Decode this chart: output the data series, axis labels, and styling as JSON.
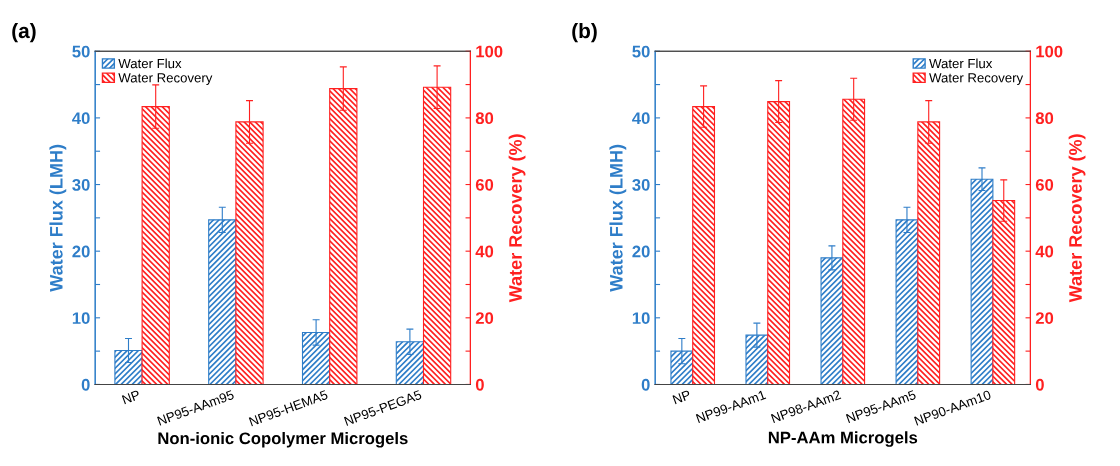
{
  "chart_data": [
    {
      "type": "bar",
      "annotations": [
        "(a)"
      ],
      "xlabel": "Non-ionic Copolymer Microgels",
      "ylabel": "Water Flux (LMH)",
      "y2label": "Water Recovery (%)",
      "categories": [
        "NP",
        "NP95-AAm95",
        "NP95-HEMA5",
        "NP95-PEGA5"
      ],
      "series": [
        {
          "name": "Water Flux",
          "color": "#2e7dc8",
          "values": [
            5.1,
            24.7,
            7.8,
            6.4
          ],
          "errors": [
            1.8,
            1.9,
            1.9,
            1.9
          ]
        },
        {
          "name": "Water Recovery",
          "color": "#ff2020",
          "axis": "y2",
          "values": [
            83.4,
            78.8,
            88.8,
            89.2
          ],
          "errors": [
            6.5,
            6.4,
            6.5,
            6.4
          ]
        }
      ],
      "ylim": [
        0,
        50
      ],
      "yticks": [
        0,
        {
          "value": 5,
          "label": null
        },
        10,
        {
          "value": 15,
          "label": null
        },
        20,
        {
          "value": 25,
          "label": null
        },
        30,
        {
          "value": 35,
          "label": null
        },
        40,
        {
          "value": 45,
          "label": null
        },
        50
      ],
      "y2lim": [
        0,
        100
      ],
      "y2ticks": [
        0,
        {
          "value": 10,
          "label": null
        },
        20,
        {
          "value": 30,
          "label": null
        },
        40,
        {
          "value": 50,
          "label": null
        },
        60,
        {
          "value": 70,
          "label": null
        },
        80,
        {
          "value": 90,
          "label": null
        },
        100
      ],
      "legend": "top left",
      "grid": false
    },
    {
      "type": "bar",
      "annotations": [
        "(b)"
      ],
      "xlabel": "NP-AAm Microgels",
      "ylabel": "Water Flux (LMH)",
      "y2label": "Water Recovery (%)",
      "categories": [
        "NP",
        "NP99-AAm1",
        "NP98-AAm2",
        "NP95-AAm5",
        "NP90-AAm10"
      ],
      "series": [
        {
          "name": "Water Flux",
          "color": "#2e7dc8",
          "values": [
            5.0,
            7.4,
            19.0,
            24.7,
            30.8
          ],
          "errors": [
            1.9,
            1.8,
            1.8,
            1.9,
            1.7
          ]
        },
        {
          "name": "Water Recovery",
          "color": "#ff2020",
          "axis": "y2",
          "values": [
            83.4,
            84.9,
            85.6,
            78.8,
            55.2
          ],
          "errors": [
            6.2,
            6.3,
            6.3,
            6.4,
            6.2
          ]
        }
      ],
      "ylim": [
        0,
        50
      ],
      "yticks": [
        0,
        {
          "value": 5,
          "label": null
        },
        10,
        {
          "value": 15,
          "label": null
        },
        20,
        {
          "value": 25,
          "label": null
        },
        30,
        {
          "value": 35,
          "label": null
        },
        40,
        {
          "value": 45,
          "label": null
        },
        50
      ],
      "y2lim": [
        0,
        100
      ],
      "y2ticks": [
        0,
        {
          "value": 10,
          "label": null
        },
        20,
        {
          "value": 30,
          "label": null
        },
        40,
        {
          "value": 50,
          "label": null
        },
        60,
        {
          "value": 70,
          "label": null
        },
        80,
        {
          "value": 90,
          "label": null
        },
        100
      ],
      "legend": "top right",
      "grid": false
    }
  ]
}
